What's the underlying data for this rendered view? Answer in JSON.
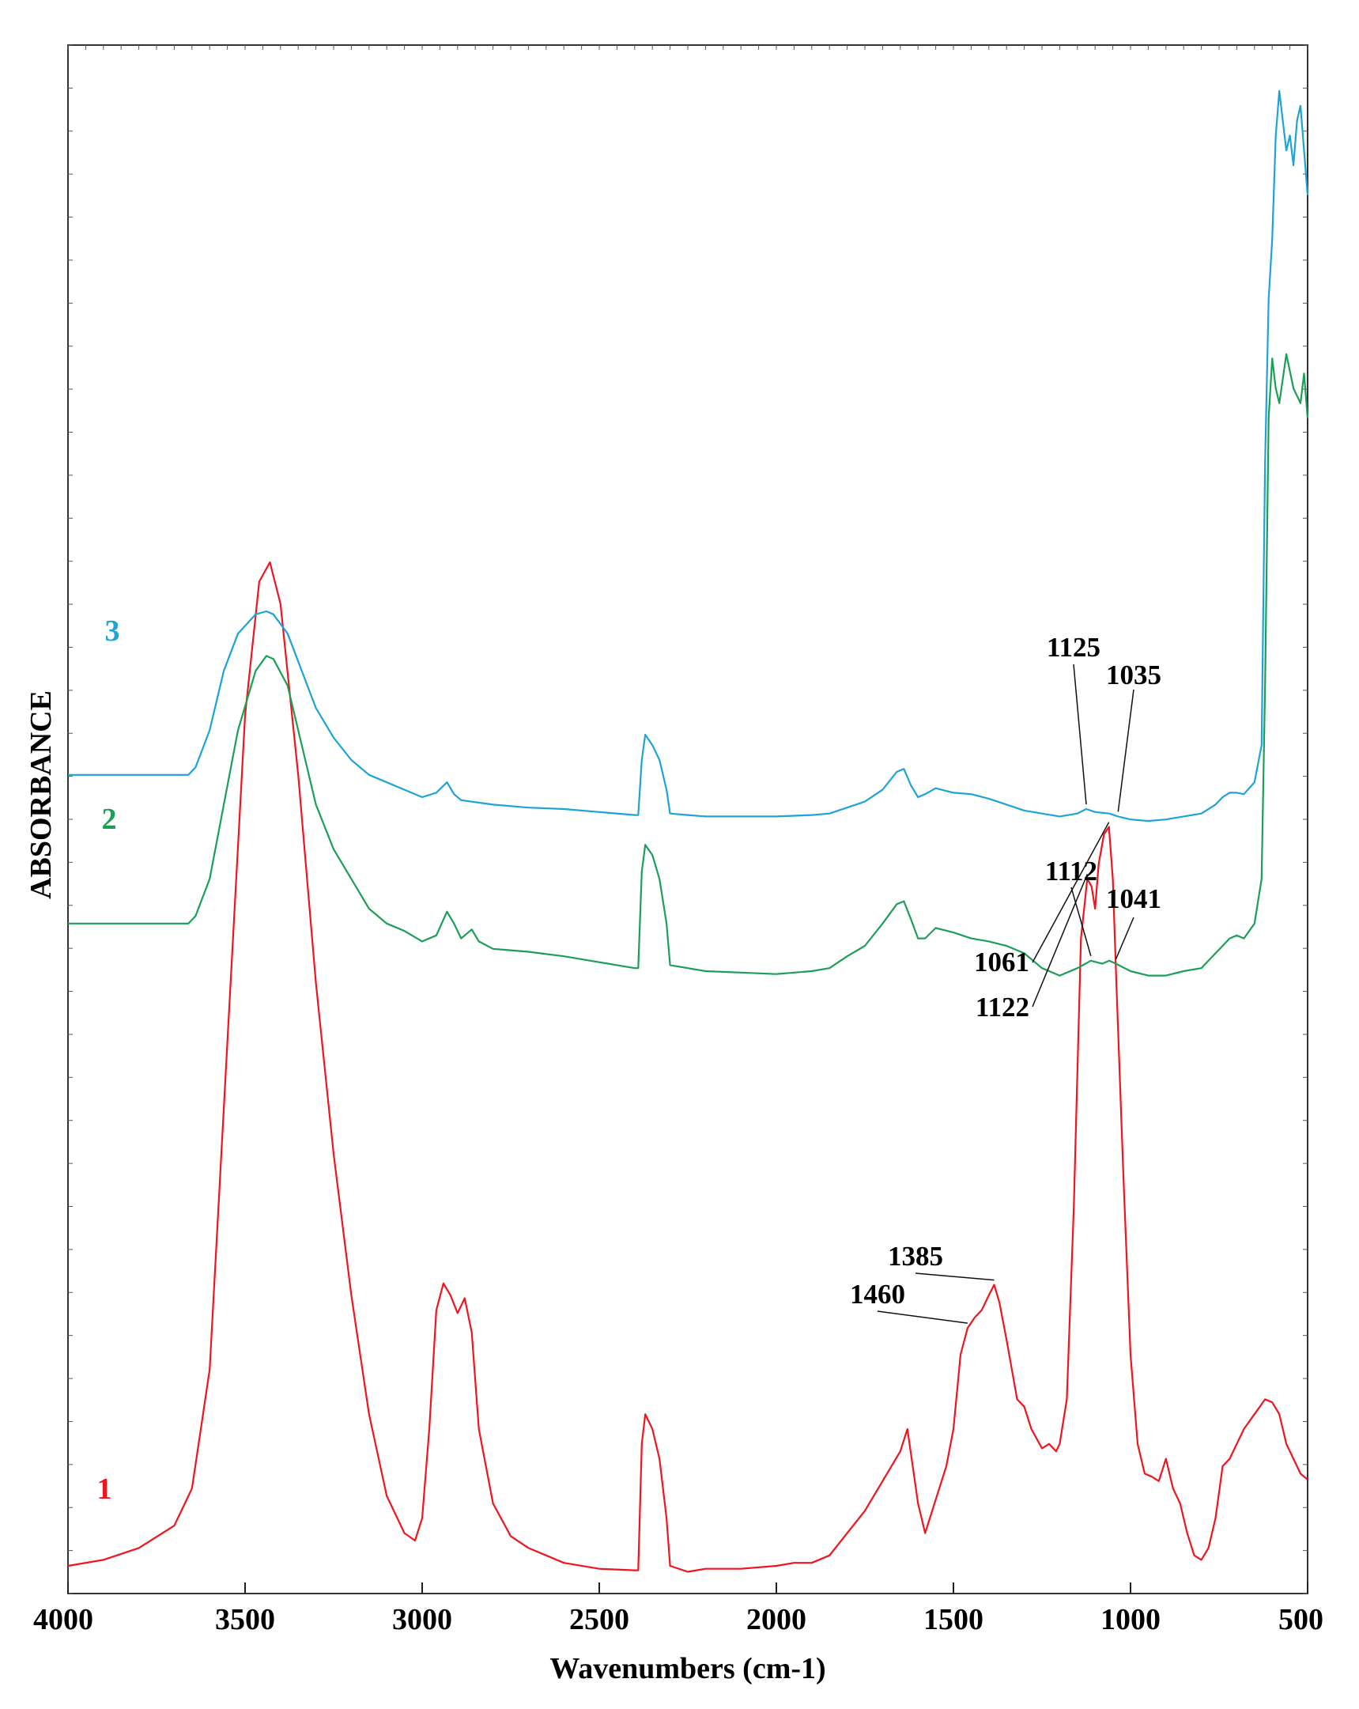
{
  "chart_data": {
    "type": "line",
    "xlabel": "Wavenumbers (cm-1)",
    "ylabel": "ABSORBANCE",
    "xlim": [
      4000,
      500
    ],
    "ylim": [
      0,
      1
    ],
    "x_ticks": [
      "4000",
      "3500",
      "3000",
      "2500",
      "2000",
      "1500",
      "1000",
      "500"
    ],
    "grid": false,
    "series": [
      {
        "name": "1",
        "color": "#f0141e",
        "points": [
          [
            4000,
            0.008
          ],
          [
            3900,
            0.012
          ],
          [
            3800,
            0.02
          ],
          [
            3700,
            0.035
          ],
          [
            3650,
            0.06
          ],
          [
            3600,
            0.14
          ],
          [
            3550,
            0.36
          ],
          [
            3500,
            0.58
          ],
          [
            3460,
            0.67
          ],
          [
            3430,
            0.683
          ],
          [
            3400,
            0.655
          ],
          [
            3350,
            0.54
          ],
          [
            3300,
            0.4
          ],
          [
            3250,
            0.285
          ],
          [
            3200,
            0.19
          ],
          [
            3150,
            0.11
          ],
          [
            3100,
            0.055
          ],
          [
            3050,
            0.03
          ],
          [
            3020,
            0.025
          ],
          [
            3000,
            0.04
          ],
          [
            2980,
            0.1
          ],
          [
            2960,
            0.18
          ],
          [
            2940,
            0.198
          ],
          [
            2920,
            0.19
          ],
          [
            2900,
            0.178
          ],
          [
            2880,
            0.188
          ],
          [
            2860,
            0.165
          ],
          [
            2840,
            0.1
          ],
          [
            2800,
            0.05
          ],
          [
            2750,
            0.028
          ],
          [
            2700,
            0.02
          ],
          [
            2600,
            0.01
          ],
          [
            2500,
            0.006
          ],
          [
            2400,
            0.005
          ],
          [
            2390,
            0.005
          ],
          [
            2380,
            0.09
          ],
          [
            2370,
            0.11
          ],
          [
            2350,
            0.1
          ],
          [
            2330,
            0.08
          ],
          [
            2310,
            0.04
          ],
          [
            2300,
            0.008
          ],
          [
            2250,
            0.004
          ],
          [
            2200,
            0.006
          ],
          [
            2100,
            0.006
          ],
          [
            2000,
            0.008
          ],
          [
            1950,
            0.01
          ],
          [
            1900,
            0.01
          ],
          [
            1850,
            0.015
          ],
          [
            1800,
            0.03
          ],
          [
            1750,
            0.045
          ],
          [
            1700,
            0.065
          ],
          [
            1650,
            0.085
          ],
          [
            1630,
            0.1
          ],
          [
            1600,
            0.05
          ],
          [
            1580,
            0.03
          ],
          [
            1560,
            0.045
          ],
          [
            1520,
            0.075
          ],
          [
            1500,
            0.1
          ],
          [
            1480,
            0.15
          ],
          [
            1460,
            0.168
          ],
          [
            1440,
            0.175
          ],
          [
            1420,
            0.18
          ],
          [
            1400,
            0.19
          ],
          [
            1385,
            0.197
          ],
          [
            1370,
            0.185
          ],
          [
            1350,
            0.16
          ],
          [
            1320,
            0.12
          ],
          [
            1300,
            0.115
          ],
          [
            1280,
            0.1
          ],
          [
            1250,
            0.087
          ],
          [
            1230,
            0.09
          ],
          [
            1210,
            0.085
          ],
          [
            1200,
            0.09
          ],
          [
            1180,
            0.12
          ],
          [
            1160,
            0.25
          ],
          [
            1140,
            0.43
          ],
          [
            1122,
            0.47
          ],
          [
            1110,
            0.465
          ],
          [
            1100,
            0.45
          ],
          [
            1090,
            0.48
          ],
          [
            1075,
            0.5
          ],
          [
            1061,
            0.505
          ],
          [
            1050,
            0.47
          ],
          [
            1040,
            0.4
          ],
          [
            1020,
            0.27
          ],
          [
            1000,
            0.15
          ],
          [
            980,
            0.09
          ],
          [
            960,
            0.07
          ],
          [
            940,
            0.068
          ],
          [
            920,
            0.065
          ],
          [
            900,
            0.08
          ],
          [
            880,
            0.06
          ],
          [
            860,
            0.05
          ],
          [
            840,
            0.03
          ],
          [
            820,
            0.015
          ],
          [
            800,
            0.012
          ],
          [
            780,
            0.02
          ],
          [
            760,
            0.04
          ],
          [
            740,
            0.075
          ],
          [
            720,
            0.08
          ],
          [
            700,
            0.09
          ],
          [
            680,
            0.1
          ],
          [
            650,
            0.11
          ],
          [
            620,
            0.12
          ],
          [
            600,
            0.118
          ],
          [
            580,
            0.11
          ],
          [
            560,
            0.09
          ],
          [
            540,
            0.08
          ],
          [
            520,
            0.07
          ],
          [
            500,
            0.066
          ]
        ]
      },
      {
        "name": "2",
        "color": "#1d9e58",
        "points": [
          [
            4000,
            0.44
          ],
          [
            3900,
            0.44
          ],
          [
            3800,
            0.44
          ],
          [
            3700,
            0.44
          ],
          [
            3660,
            0.44
          ],
          [
            3640,
            0.445
          ],
          [
            3600,
            0.47
          ],
          [
            3560,
            0.52
          ],
          [
            3520,
            0.57
          ],
          [
            3470,
            0.61
          ],
          [
            3440,
            0.62
          ],
          [
            3420,
            0.618
          ],
          [
            3380,
            0.6
          ],
          [
            3340,
            0.56
          ],
          [
            3300,
            0.52
          ],
          [
            3250,
            0.49
          ],
          [
            3200,
            0.47
          ],
          [
            3150,
            0.45
          ],
          [
            3100,
            0.44
          ],
          [
            3050,
            0.435
          ],
          [
            3000,
            0.428
          ],
          [
            2960,
            0.432
          ],
          [
            2930,
            0.448
          ],
          [
            2910,
            0.44
          ],
          [
            2890,
            0.43
          ],
          [
            2860,
            0.436
          ],
          [
            2840,
            0.428
          ],
          [
            2800,
            0.423
          ],
          [
            2700,
            0.421
          ],
          [
            2600,
            0.418
          ],
          [
            2500,
            0.414
          ],
          [
            2400,
            0.41
          ],
          [
            2390,
            0.41
          ],
          [
            2380,
            0.475
          ],
          [
            2370,
            0.493
          ],
          [
            2350,
            0.486
          ],
          [
            2330,
            0.47
          ],
          [
            2310,
            0.44
          ],
          [
            2300,
            0.412
          ],
          [
            2250,
            0.41
          ],
          [
            2200,
            0.408
          ],
          [
            2100,
            0.407
          ],
          [
            2000,
            0.406
          ],
          [
            1900,
            0.408
          ],
          [
            1850,
            0.41
          ],
          [
            1800,
            0.418
          ],
          [
            1750,
            0.425
          ],
          [
            1700,
            0.44
          ],
          [
            1660,
            0.453
          ],
          [
            1640,
            0.455
          ],
          [
            1620,
            0.443
          ],
          [
            1600,
            0.43
          ],
          [
            1580,
            0.43
          ],
          [
            1550,
            0.437
          ],
          [
            1500,
            0.434
          ],
          [
            1450,
            0.43
          ],
          [
            1400,
            0.428
          ],
          [
            1350,
            0.425
          ],
          [
            1300,
            0.42
          ],
          [
            1250,
            0.41
          ],
          [
            1200,
            0.405
          ],
          [
            1150,
            0.41
          ],
          [
            1112,
            0.415
          ],
          [
            1080,
            0.413
          ],
          [
            1060,
            0.415
          ],
          [
            1041,
            0.413
          ],
          [
            1000,
            0.408
          ],
          [
            950,
            0.405
          ],
          [
            900,
            0.405
          ],
          [
            850,
            0.408
          ],
          [
            800,
            0.41
          ],
          [
            760,
            0.42
          ],
          [
            740,
            0.425
          ],
          [
            720,
            0.43
          ],
          [
            700,
            0.432
          ],
          [
            680,
            0.43
          ],
          [
            650,
            0.44
          ],
          [
            630,
            0.47
          ],
          [
            620,
            0.6
          ],
          [
            610,
            0.78
          ],
          [
            600,
            0.82
          ],
          [
            590,
            0.8
          ],
          [
            580,
            0.79
          ],
          [
            560,
            0.823
          ],
          [
            540,
            0.8
          ],
          [
            520,
            0.79
          ],
          [
            510,
            0.81
          ],
          [
            500,
            0.78
          ]
        ]
      },
      {
        "name": "3",
        "color": "#1ea3d6",
        "points": [
          [
            4000,
            0.54
          ],
          [
            3900,
            0.54
          ],
          [
            3800,
            0.54
          ],
          [
            3700,
            0.54
          ],
          [
            3660,
            0.54
          ],
          [
            3640,
            0.545
          ],
          [
            3600,
            0.57
          ],
          [
            3560,
            0.61
          ],
          [
            3520,
            0.635
          ],
          [
            3470,
            0.648
          ],
          [
            3440,
            0.65
          ],
          [
            3420,
            0.648
          ],
          [
            3380,
            0.635
          ],
          [
            3340,
            0.61
          ],
          [
            3300,
            0.585
          ],
          [
            3250,
            0.565
          ],
          [
            3200,
            0.55
          ],
          [
            3150,
            0.54
          ],
          [
            3100,
            0.535
          ],
          [
            3050,
            0.53
          ],
          [
            3000,
            0.525
          ],
          [
            2960,
            0.528
          ],
          [
            2930,
            0.535
          ],
          [
            2910,
            0.527
          ],
          [
            2890,
            0.523
          ],
          [
            2800,
            0.52
          ],
          [
            2700,
            0.518
          ],
          [
            2600,
            0.517
          ],
          [
            2500,
            0.515
          ],
          [
            2400,
            0.513
          ],
          [
            2390,
            0.513
          ],
          [
            2380,
            0.55
          ],
          [
            2370,
            0.567
          ],
          [
            2350,
            0.56
          ],
          [
            2330,
            0.55
          ],
          [
            2310,
            0.53
          ],
          [
            2300,
            0.514
          ],
          [
            2250,
            0.513
          ],
          [
            2200,
            0.512
          ],
          [
            2100,
            0.512
          ],
          [
            2000,
            0.512
          ],
          [
            1900,
            0.513
          ],
          [
            1850,
            0.514
          ],
          [
            1800,
            0.518
          ],
          [
            1750,
            0.522
          ],
          [
            1700,
            0.53
          ],
          [
            1660,
            0.542
          ],
          [
            1640,
            0.544
          ],
          [
            1620,
            0.533
          ],
          [
            1600,
            0.525
          ],
          [
            1580,
            0.527
          ],
          [
            1550,
            0.531
          ],
          [
            1500,
            0.528
          ],
          [
            1450,
            0.527
          ],
          [
            1400,
            0.524
          ],
          [
            1350,
            0.52
          ],
          [
            1300,
            0.516
          ],
          [
            1250,
            0.514
          ],
          [
            1200,
            0.512
          ],
          [
            1150,
            0.514
          ],
          [
            1125,
            0.517
          ],
          [
            1100,
            0.515
          ],
          [
            1060,
            0.514
          ],
          [
            1035,
            0.512
          ],
          [
            1000,
            0.51
          ],
          [
            950,
            0.509
          ],
          [
            900,
            0.51
          ],
          [
            850,
            0.512
          ],
          [
            800,
            0.514
          ],
          [
            760,
            0.52
          ],
          [
            740,
            0.525
          ],
          [
            720,
            0.528
          ],
          [
            700,
            0.528
          ],
          [
            680,
            0.527
          ],
          [
            650,
            0.535
          ],
          [
            630,
            0.56
          ],
          [
            620,
            0.75
          ],
          [
            610,
            0.86
          ],
          [
            600,
            0.9
          ],
          [
            590,
            0.97
          ],
          [
            580,
            1.0
          ],
          [
            570,
            0.98
          ],
          [
            560,
            0.96
          ],
          [
            550,
            0.97
          ],
          [
            540,
            0.95
          ],
          [
            530,
            0.98
          ],
          [
            520,
            0.99
          ],
          [
            510,
            0.96
          ],
          [
            500,
            0.93
          ]
        ]
      }
    ],
    "annotations": [
      {
        "text": "1125",
        "x": 1125,
        "series": "3"
      },
      {
        "text": "1035",
        "x": 1035,
        "series": "3"
      },
      {
        "text": "1112",
        "x": 1112,
        "series": "2"
      },
      {
        "text": "1041",
        "x": 1041,
        "series": "2"
      },
      {
        "text": "1061",
        "x": 1061,
        "series": "1"
      },
      {
        "text": "1122",
        "x": 1122,
        "series": "1"
      },
      {
        "text": "1385",
        "x": 1385,
        "series": "1"
      },
      {
        "text": "1460",
        "x": 1460,
        "series": "1"
      }
    ]
  }
}
